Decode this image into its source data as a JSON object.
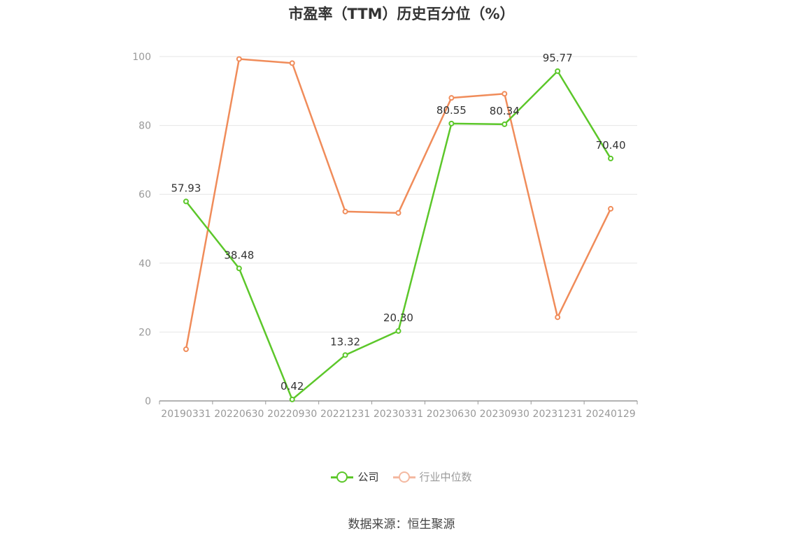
{
  "chart_data": {
    "type": "line",
    "title": "市盈率（TTM）历史百分位（%）",
    "categories": [
      "20190331",
      "20220630",
      "20220930",
      "20221231",
      "20230331",
      "20230630",
      "20230930",
      "20231231",
      "20240129"
    ],
    "ylim": [
      0,
      100
    ],
    "yticks": [
      "0",
      "20",
      "40",
      "60",
      "80",
      "100"
    ],
    "grid": true,
    "legend_position": "bottom",
    "series": [
      {
        "name": "公司",
        "color": "#5cc72a",
        "values": [
          57.93,
          38.48,
          0.42,
          13.32,
          20.3,
          80.55,
          80.34,
          95.77,
          70.4
        ],
        "labels": [
          "57.93",
          "38.48",
          "0.42",
          "13.32",
          "20.30",
          "80.55",
          "80.34",
          "95.77",
          "70.40"
        ]
      },
      {
        "name": "行业中位数",
        "color": "#f08c5a",
        "values": [
          15.0,
          99.3,
          98.1,
          55.0,
          54.6,
          88.0,
          89.2,
          24.3,
          55.8
        ]
      }
    ]
  },
  "legend": {
    "company_label": "公司",
    "industry_label": "行业中位数",
    "company_color": "#5cc72a",
    "industry_color": "#f4b9a1",
    "industry_text_color": "#999999"
  },
  "source": "数据来源：恒生聚源"
}
